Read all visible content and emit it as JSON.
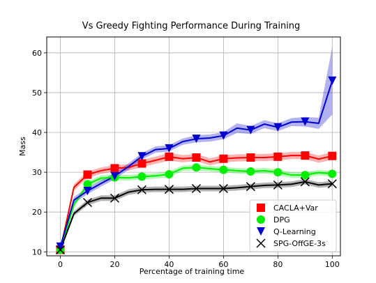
{
  "chart_data": {
    "type": "line",
    "title": "Vs Greedy Fighting Performance During Training",
    "xlabel": "Percentage of training time",
    "ylabel": "Mass",
    "xlim": [
      -5,
      103
    ],
    "ylim": [
      9,
      64
    ],
    "xticks": [
      0,
      20,
      40,
      60,
      80,
      100
    ],
    "yticks": [
      10,
      20,
      30,
      40,
      50,
      60
    ],
    "grid": true,
    "legend_position": "lower-right",
    "x": [
      0,
      5,
      10,
      15,
      20,
      25,
      30,
      35,
      40,
      45,
      50,
      55,
      60,
      65,
      70,
      75,
      80,
      85,
      90,
      95,
      100
    ],
    "series": [
      {
        "name": "CACLA+Var",
        "color": "#ff0000",
        "marker": "square",
        "values": [
          10.5,
          26.2,
          29.4,
          30.4,
          31.0,
          31.2,
          32.2,
          33.0,
          33.9,
          33.4,
          33.7,
          32.6,
          33.4,
          33.6,
          33.7,
          33.7,
          33.9,
          34.2,
          34.2,
          33.3,
          34.1
        ],
        "band": [
          0.5,
          0.8,
          0.8,
          0.8,
          0.8,
          0.8,
          0.9,
          0.9,
          1.0,
          0.9,
          0.9,
          0.9,
          0.9,
          0.9,
          0.9,
          0.9,
          0.9,
          0.9,
          0.9,
          0.9,
          1.0
        ]
      },
      {
        "name": "DPG",
        "color": "#00ee00",
        "marker": "circle",
        "values": [
          10.5,
          21.8,
          27.0,
          28.5,
          28.7,
          28.6,
          28.9,
          29.1,
          29.5,
          31.0,
          31.2,
          30.9,
          30.6,
          30.4,
          30.2,
          30.4,
          30.0,
          29.3,
          29.3,
          29.9,
          29.6
        ],
        "band": [
          0.5,
          0.6,
          0.7,
          0.7,
          0.7,
          0.7,
          0.7,
          0.7,
          0.7,
          0.7,
          0.7,
          0.7,
          0.7,
          0.7,
          0.7,
          0.7,
          0.7,
          0.7,
          0.7,
          0.7,
          0.7
        ]
      },
      {
        "name": "Q-Learning",
        "color": "#0000cc",
        "marker": "triangle-down",
        "values": [
          11.3,
          23.0,
          25.3,
          27.2,
          29.0,
          31.4,
          34.0,
          35.7,
          36.0,
          37.7,
          38.4,
          38.6,
          39.2,
          41.1,
          40.6,
          42.1,
          41.3,
          42.6,
          42.7,
          42.3,
          53.0
        ],
        "band": [
          0.5,
          0.8,
          0.8,
          0.8,
          0.8,
          0.8,
          0.8,
          0.8,
          0.8,
          0.8,
          0.9,
          0.9,
          0.9,
          1.2,
          1.0,
          1.0,
          1.0,
          1.0,
          1.2,
          1.4,
          8.5
        ]
      },
      {
        "name": "SPG-OffGE-3s",
        "color": "#000000",
        "marker": "x",
        "values": [
          10.5,
          19.6,
          22.4,
          23.5,
          23.5,
          25.0,
          25.6,
          25.7,
          25.7,
          25.7,
          25.9,
          25.9,
          25.9,
          26.1,
          26.4,
          26.7,
          26.8,
          27.0,
          27.6,
          26.8,
          27.1
        ],
        "band": [
          0.5,
          0.6,
          0.7,
          0.7,
          0.7,
          0.7,
          0.7,
          0.7,
          0.7,
          0.7,
          0.7,
          0.7,
          0.7,
          0.7,
          0.7,
          0.7,
          0.7,
          0.7,
          0.7,
          0.7,
          0.7
        ]
      }
    ],
    "marker_every": 2
  }
}
